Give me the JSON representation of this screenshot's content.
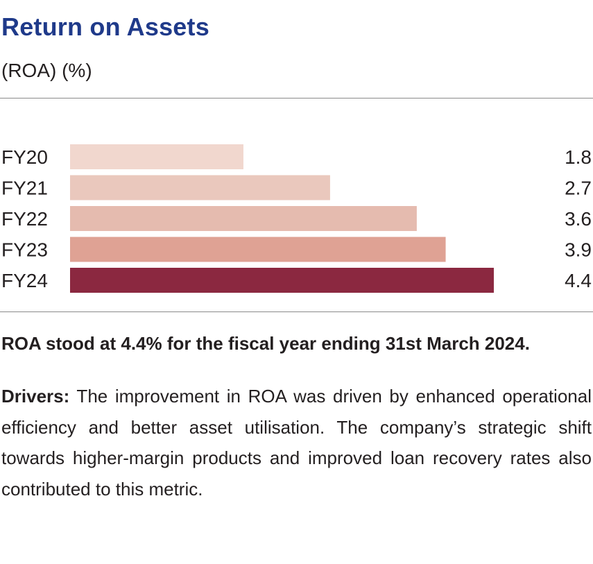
{
  "chart_data": {
    "type": "bar",
    "orientation": "horizontal",
    "title": "Return on Assets",
    "subtitle": "(ROA) (%)",
    "categories": [
      "FY20",
      "FY21",
      "FY22",
      "FY23",
      "FY24"
    ],
    "values": [
      1.8,
      2.7,
      3.6,
      3.9,
      4.4
    ],
    "value_labels": [
      "1.8",
      "2.7",
      "3.6",
      "3.9",
      "4.4"
    ],
    "xlim": [
      0,
      4.4
    ],
    "grid": false,
    "colors": [
      "#f1d7ce",
      "#eac8bd",
      "#e5bbaf",
      "#dfa294",
      "#8b2840"
    ]
  },
  "summary": {
    "headline": "ROA stood at 4.4% for the fiscal year ending 31st March 2024.",
    "drivers_label": "Drivers:",
    "drivers_text": " The improvement in ROA was driven by enhanced operational efficiency and better asset utilisation. The company’s strategic shift towards higher-margin products and improved loan recovery rates also contributed to this metric."
  }
}
